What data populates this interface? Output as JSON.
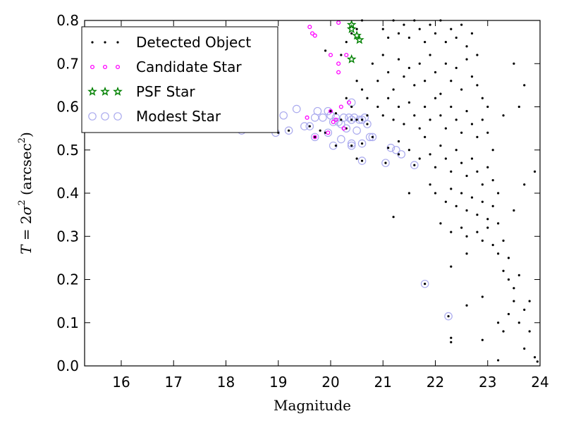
{
  "chart_data": {
    "type": "scatter",
    "title": "",
    "xlabel": "Magnitude",
    "ylabel": "T = 2σ² (arcsec²)",
    "ylabel_parts": {
      "var": "T",
      "eq": " = 2",
      "sigma": "σ",
      "sq": "2",
      "unit_open": " (arcsec",
      "unit_sup": "2",
      "unit_close": ")"
    },
    "xlim": [
      15.3,
      24.0
    ],
    "ylim": [
      0.0,
      0.8
    ],
    "xticks": [
      16,
      17,
      18,
      19,
      20,
      21,
      22,
      23,
      24
    ],
    "yticks": [
      0.0,
      0.1,
      0.2,
      0.3,
      0.4,
      0.5,
      0.6,
      0.7,
      0.8
    ],
    "grid": false,
    "legend_position": "top-left",
    "colors": {
      "detected": "#000000",
      "candidate": "#ff00ff",
      "psf": "#008000",
      "modest": "#aaaaee"
    },
    "series": [
      {
        "name": "Detected Object",
        "marker": "dot",
        "points": [
          [
            18.3,
            0.545
          ],
          [
            19.0,
            0.54
          ],
          [
            19.2,
            0.545
          ],
          [
            19.6,
            0.555
          ],
          [
            19.7,
            0.53
          ],
          [
            19.8,
            0.545
          ],
          [
            19.9,
            0.54
          ],
          [
            20.0,
            0.59
          ],
          [
            20.1,
            0.585
          ],
          [
            20.2,
            0.57
          ],
          [
            20.3,
            0.55
          ],
          [
            20.4,
            0.57
          ],
          [
            20.5,
            0.57
          ],
          [
            20.6,
            0.57
          ],
          [
            20.7,
            0.56
          ],
          [
            20.8,
            0.53
          ],
          [
            21.1,
            0.505
          ],
          [
            21.3,
            0.49
          ],
          [
            21.6,
            0.465
          ],
          [
            21.8,
            0.19
          ],
          [
            22.25,
            0.115
          ],
          [
            20.4,
            0.51
          ],
          [
            20.6,
            0.515
          ],
          [
            20.1,
            0.51
          ],
          [
            21.05,
            0.47
          ],
          [
            20.5,
            0.48
          ],
          [
            20.6,
            0.475
          ],
          [
            21.0,
            0.78
          ],
          [
            21.1,
            0.76
          ],
          [
            21.2,
            0.8
          ],
          [
            21.3,
            0.77
          ],
          [
            21.4,
            0.79
          ],
          [
            21.5,
            0.76
          ],
          [
            21.6,
            0.8
          ],
          [
            21.7,
            0.78
          ],
          [
            21.8,
            0.75
          ],
          [
            21.9,
            0.79
          ],
          [
            22.0,
            0.77
          ],
          [
            22.1,
            0.8
          ],
          [
            22.2,
            0.75
          ],
          [
            22.3,
            0.78
          ],
          [
            22.4,
            0.76
          ],
          [
            22.5,
            0.79
          ],
          [
            22.6,
            0.74
          ],
          [
            22.7,
            0.77
          ],
          [
            22.8,
            0.72
          ],
          [
            20.8,
            0.7
          ],
          [
            20.9,
            0.66
          ],
          [
            21.0,
            0.72
          ],
          [
            21.1,
            0.68
          ],
          [
            21.2,
            0.64
          ],
          [
            21.3,
            0.71
          ],
          [
            21.4,
            0.67
          ],
          [
            21.5,
            0.69
          ],
          [
            21.6,
            0.65
          ],
          [
            21.7,
            0.7
          ],
          [
            21.8,
            0.66
          ],
          [
            21.9,
            0.72
          ],
          [
            22.0,
            0.68
          ],
          [
            22.1,
            0.63
          ],
          [
            22.2,
            0.7
          ],
          [
            22.3,
            0.66
          ],
          [
            22.4,
            0.69
          ],
          [
            22.5,
            0.64
          ],
          [
            22.6,
            0.71
          ],
          [
            22.7,
            0.67
          ],
          [
            22.8,
            0.65
          ],
          [
            22.9,
            0.62
          ],
          [
            23.0,
            0.6
          ],
          [
            20.7,
            0.62
          ],
          [
            20.9,
            0.6
          ],
          [
            21.0,
            0.58
          ],
          [
            21.1,
            0.62
          ],
          [
            21.2,
            0.57
          ],
          [
            21.3,
            0.6
          ],
          [
            21.4,
            0.56
          ],
          [
            21.5,
            0.61
          ],
          [
            21.6,
            0.58
          ],
          [
            21.7,
            0.55
          ],
          [
            21.8,
            0.6
          ],
          [
            21.9,
            0.57
          ],
          [
            22.0,
            0.62
          ],
          [
            22.1,
            0.58
          ],
          [
            22.2,
            0.55
          ],
          [
            22.3,
            0.6
          ],
          [
            22.4,
            0.57
          ],
          [
            22.5,
            0.54
          ],
          [
            22.6,
            0.59
          ],
          [
            22.7,
            0.56
          ],
          [
            22.8,
            0.53
          ],
          [
            22.9,
            0.57
          ],
          [
            23.0,
            0.54
          ],
          [
            23.1,
            0.5
          ],
          [
            21.3,
            0.52
          ],
          [
            21.5,
            0.5
          ],
          [
            21.7,
            0.48
          ],
          [
            21.8,
            0.53
          ],
          [
            21.9,
            0.49
          ],
          [
            22.0,
            0.46
          ],
          [
            22.1,
            0.51
          ],
          [
            22.2,
            0.48
          ],
          [
            22.3,
            0.45
          ],
          [
            22.4,
            0.5
          ],
          [
            22.5,
            0.47
          ],
          [
            22.6,
            0.44
          ],
          [
            22.7,
            0.48
          ],
          [
            22.8,
            0.45
          ],
          [
            22.9,
            0.42
          ],
          [
            23.0,
            0.46
          ],
          [
            23.1,
            0.43
          ],
          [
            23.2,
            0.4
          ],
          [
            21.9,
            0.42
          ],
          [
            22.0,
            0.4
          ],
          [
            22.2,
            0.38
          ],
          [
            22.3,
            0.41
          ],
          [
            22.4,
            0.37
          ],
          [
            22.5,
            0.4
          ],
          [
            22.6,
            0.36
          ],
          [
            22.7,
            0.39
          ],
          [
            22.8,
            0.35
          ],
          [
            22.9,
            0.38
          ],
          [
            23.0,
            0.34
          ],
          [
            23.1,
            0.37
          ],
          [
            23.2,
            0.33
          ],
          [
            22.1,
            0.33
          ],
          [
            22.3,
            0.31
          ],
          [
            22.5,
            0.32
          ],
          [
            22.6,
            0.3
          ],
          [
            22.8,
            0.31
          ],
          [
            22.9,
            0.29
          ],
          [
            23.0,
            0.32
          ],
          [
            23.1,
            0.28
          ],
          [
            23.2,
            0.26
          ],
          [
            23.3,
            0.29
          ],
          [
            23.4,
            0.25
          ],
          [
            23.3,
            0.22
          ],
          [
            23.4,
            0.2
          ],
          [
            23.5,
            0.18
          ],
          [
            23.6,
            0.21
          ],
          [
            23.5,
            0.15
          ],
          [
            23.7,
            0.13
          ],
          [
            23.6,
            0.1
          ],
          [
            23.8,
            0.08
          ],
          [
            23.7,
            0.04
          ],
          [
            23.9,
            0.02
          ],
          [
            23.95,
            0.01
          ],
          [
            23.3,
            0.08
          ],
          [
            23.2,
            0.1
          ],
          [
            22.9,
            0.06
          ],
          [
            22.3,
            0.055
          ],
          [
            22.6,
            0.14
          ],
          [
            22.9,
            0.16
          ],
          [
            23.4,
            0.12
          ],
          [
            23.8,
            0.15
          ],
          [
            23.9,
            0.45
          ],
          [
            23.6,
            0.6
          ],
          [
            23.7,
            0.65
          ],
          [
            23.5,
            0.7
          ],
          [
            23.3,
            0.58
          ],
          [
            21.5,
            0.4
          ],
          [
            21.2,
            0.345
          ],
          [
            22.3,
            0.065
          ],
          [
            23.2,
            0.013
          ],
          [
            22.3,
            0.23
          ],
          [
            22.6,
            0.26
          ],
          [
            23.5,
            0.36
          ],
          [
            23.7,
            0.42
          ],
          [
            20.3,
            0.62
          ],
          [
            20.4,
            0.6
          ],
          [
            20.6,
            0.64
          ],
          [
            20.7,
            0.58
          ],
          [
            20.5,
            0.66
          ],
          [
            20.2,
            0.72
          ],
          [
            20.3,
            0.75
          ],
          [
            20.5,
            0.78
          ],
          [
            20.6,
            0.8
          ],
          [
            20.4,
            0.77
          ],
          [
            19.9,
            0.73
          ]
        ]
      },
      {
        "name": "Candidate Star",
        "marker": "ring-small",
        "points": [
          [
            19.6,
            0.785
          ],
          [
            19.65,
            0.77
          ],
          [
            19.7,
            0.765
          ],
          [
            20.15,
            0.795
          ],
          [
            20.0,
            0.72
          ],
          [
            20.3,
            0.72
          ],
          [
            20.15,
            0.7
          ],
          [
            20.15,
            0.68
          ],
          [
            20.35,
            0.61
          ],
          [
            20.2,
            0.6
          ],
          [
            20.0,
            0.59
          ],
          [
            20.05,
            0.565
          ],
          [
            20.25,
            0.55
          ],
          [
            19.55,
            0.575
          ],
          [
            19.7,
            0.53
          ],
          [
            19.95,
            0.54
          ],
          [
            20.1,
            0.57
          ]
        ]
      },
      {
        "name": "PSF Star",
        "marker": "star",
        "points": [
          [
            20.4,
            0.79
          ],
          [
            20.4,
            0.78
          ],
          [
            20.5,
            0.765
          ],
          [
            20.55,
            0.755
          ],
          [
            20.4,
            0.71
          ]
        ]
      },
      {
        "name": "Modest Star",
        "marker": "ring-large",
        "points": [
          [
            18.3,
            0.545
          ],
          [
            18.95,
            0.54
          ],
          [
            19.2,
            0.545
          ],
          [
            19.35,
            0.595
          ],
          [
            19.5,
            0.555
          ],
          [
            19.6,
            0.555
          ],
          [
            19.7,
            0.575
          ],
          [
            19.75,
            0.59
          ],
          [
            19.85,
            0.575
          ],
          [
            19.95,
            0.59
          ],
          [
            20.0,
            0.58
          ],
          [
            20.05,
            0.565
          ],
          [
            20.1,
            0.575
          ],
          [
            20.15,
            0.565
          ],
          [
            20.2,
            0.56
          ],
          [
            20.25,
            0.575
          ],
          [
            20.35,
            0.575
          ],
          [
            20.4,
            0.57
          ],
          [
            20.45,
            0.575
          ],
          [
            20.55,
            0.57
          ],
          [
            20.6,
            0.57
          ],
          [
            20.65,
            0.575
          ],
          [
            20.7,
            0.56
          ],
          [
            20.8,
            0.53
          ],
          [
            20.4,
            0.61
          ],
          [
            19.7,
            0.53
          ],
          [
            19.95,
            0.54
          ],
          [
            20.05,
            0.51
          ],
          [
            20.2,
            0.525
          ],
          [
            20.4,
            0.51
          ],
          [
            20.4,
            0.515
          ],
          [
            20.5,
            0.545
          ],
          [
            20.6,
            0.515
          ],
          [
            20.6,
            0.475
          ],
          [
            21.05,
            0.47
          ],
          [
            21.15,
            0.505
          ],
          [
            21.25,
            0.5
          ],
          [
            21.35,
            0.49
          ],
          [
            21.6,
            0.465
          ],
          [
            21.8,
            0.19
          ],
          [
            22.25,
            0.115
          ],
          [
            20.3,
            0.55
          ],
          [
            19.1,
            0.58
          ],
          [
            20.75,
            0.53
          ]
        ]
      }
    ],
    "legend": [
      {
        "name": "Detected Object",
        "marker": "dot"
      },
      {
        "name": "Candidate Star",
        "marker": "ring-small"
      },
      {
        "name": "PSF Star",
        "marker": "star"
      },
      {
        "name": "Modest Star",
        "marker": "ring-large"
      }
    ]
  }
}
